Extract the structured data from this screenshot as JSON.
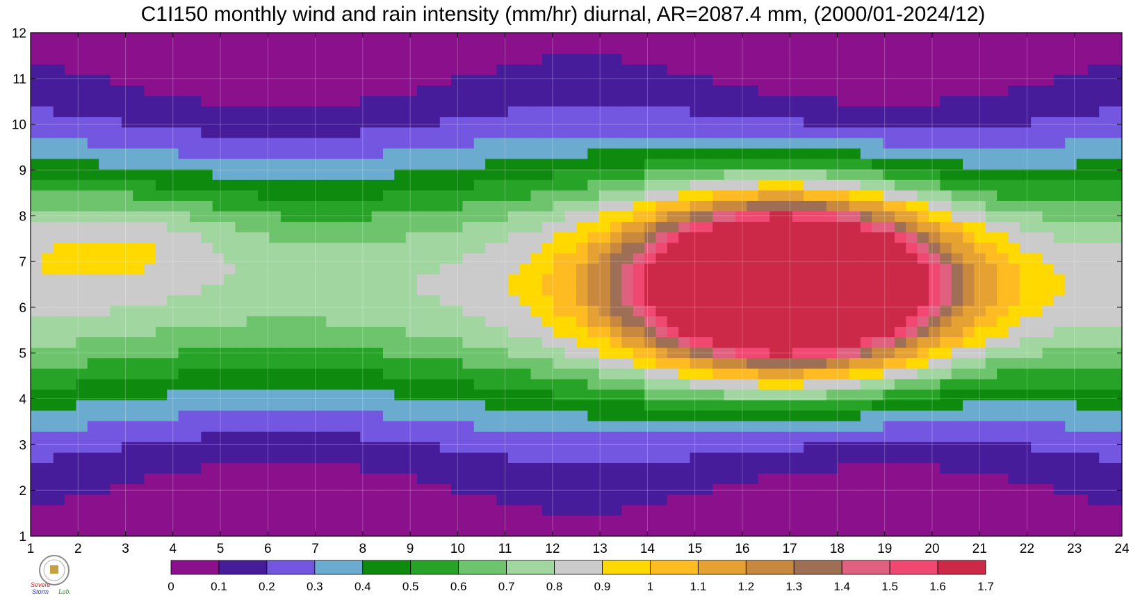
{
  "chart_data": {
    "type": "heatmap",
    "title": "C1I150 monthly wind and rain intensity (mm/hr) diurnal, AR=2087.4 mm, (2000/01-2024/12)",
    "x_ticks": [
      1,
      2,
      3,
      4,
      5,
      6,
      7,
      8,
      9,
      10,
      11,
      12,
      13,
      14,
      15,
      16,
      17,
      18,
      19,
      20,
      21,
      22,
      23,
      24
    ],
    "y_ticks": [
      1,
      2,
      3,
      4,
      5,
      6,
      7,
      8,
      9,
      10,
      11,
      12
    ],
    "xlim": [
      1,
      24
    ],
    "ylim": [
      1,
      12
    ],
    "grid": true,
    "grid_x": [
      24,
      18,
      12,
      6,
      0,
      6,
      12,
      18,
      24,
      30,
      36,
      42,
      48,
      54,
      60,
      66,
      72,
      78,
      84,
      90,
      96,
      102,
      108,
      114
    ],
    "grid_y": [
      0,
      0,
      6,
      12,
      18,
      24,
      30,
      36,
      42,
      48,
      54,
      60
    ],
    "levels": [
      0,
      0.1,
      0.2,
      0.3,
      0.4,
      0.5,
      0.6,
      0.7,
      0.8,
      0.9,
      1,
      1.1,
      1.2,
      1.3,
      1.4,
      1.5,
      1.6,
      1.7
    ],
    "level_labels": [
      "0",
      "0.1",
      "0.2",
      "0.3",
      "0.4",
      "0.5",
      "0.6",
      "0.7",
      "0.8",
      "0.9",
      "1",
      "1.1",
      "1.2",
      "1.3",
      "1.4",
      "1.5",
      "1.6",
      "1.7"
    ],
    "colors": [
      "#8a108c",
      "#461c9b",
      "#7357e0",
      "#6aabcf",
      "#0e8a0e",
      "#27a327",
      "#6dc46d",
      "#a1d6a1",
      "#cbcbcb",
      "#ffd900",
      "#ffbb22",
      "#e5a233",
      "#c8893e",
      "#9e6e55",
      "#e06080",
      "#f04870",
      "#cc2848"
    ],
    "contour_line_color": "#f5a623",
    "legend_position": "bottom",
    "peak_value": 1.55,
    "peak_location": [
      17,
      7
    ]
  },
  "logo": {
    "name": "Severe Storm Lab.",
    "word1": "Severe",
    "word2": "Storm",
    "word3": "Lab."
  }
}
